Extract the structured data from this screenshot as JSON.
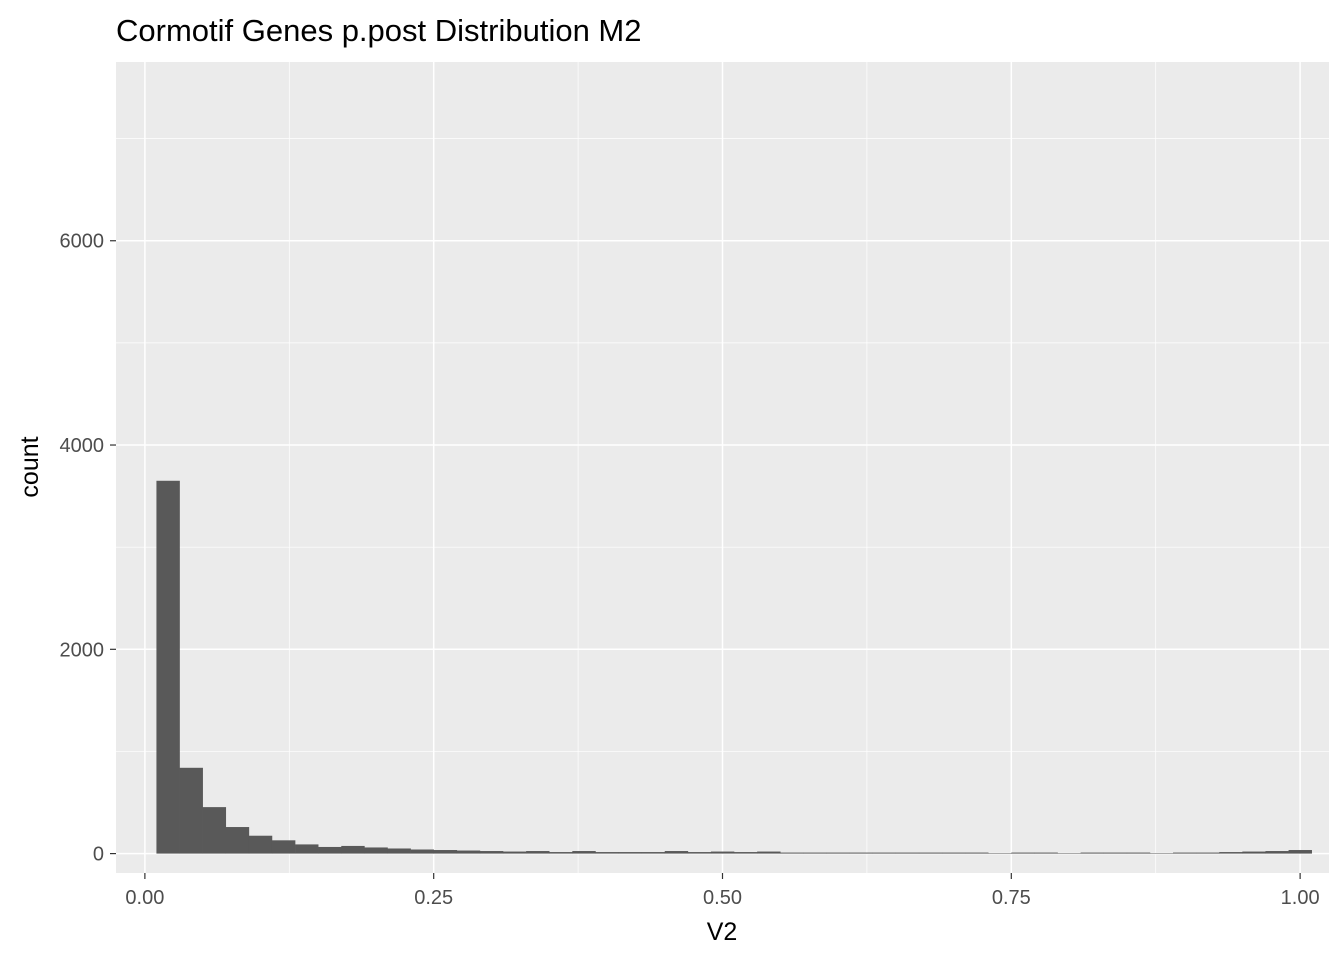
{
  "colors": {
    "panel_background": "#ebebeb",
    "grid_major": "#ffffff",
    "bar_fill": "#595959",
    "tick_label": "#4d4d4d",
    "tick_mark": "#333333"
  },
  "chart_data": {
    "type": "bar",
    "subtype": "histogram",
    "title": "Cormotif Genes p.post Distribution M2",
    "xlabel": "V2",
    "ylabel": "count",
    "xlim": [
      -0.025,
      1.025
    ],
    "ylim": [
      -190,
      7750
    ],
    "x_ticks": [
      0.0,
      0.25,
      0.5,
      0.75,
      1.0
    ],
    "x_tick_labels": [
      "0.00",
      "0.25",
      "0.50",
      "0.75",
      "1.00"
    ],
    "y_ticks": [
      0,
      2000,
      4000,
      6000
    ],
    "y_tick_labels": [
      "0",
      "2000",
      "4000",
      "6000"
    ],
    "grid": true,
    "legend": "none",
    "bin_width": 0.02,
    "bin_start": 0.01,
    "counts": [
      3650,
      840,
      455,
      260,
      175,
      130,
      90,
      65,
      75,
      60,
      50,
      40,
      35,
      30,
      25,
      20,
      25,
      15,
      25,
      15,
      15,
      15,
      25,
      15,
      20,
      15,
      20,
      10,
      10,
      10,
      10,
      10,
      10,
      10,
      10,
      10,
      5,
      10,
      10,
      5,
      10,
      10,
      10,
      5,
      10,
      10,
      15,
      20,
      25,
      35
    ]
  }
}
